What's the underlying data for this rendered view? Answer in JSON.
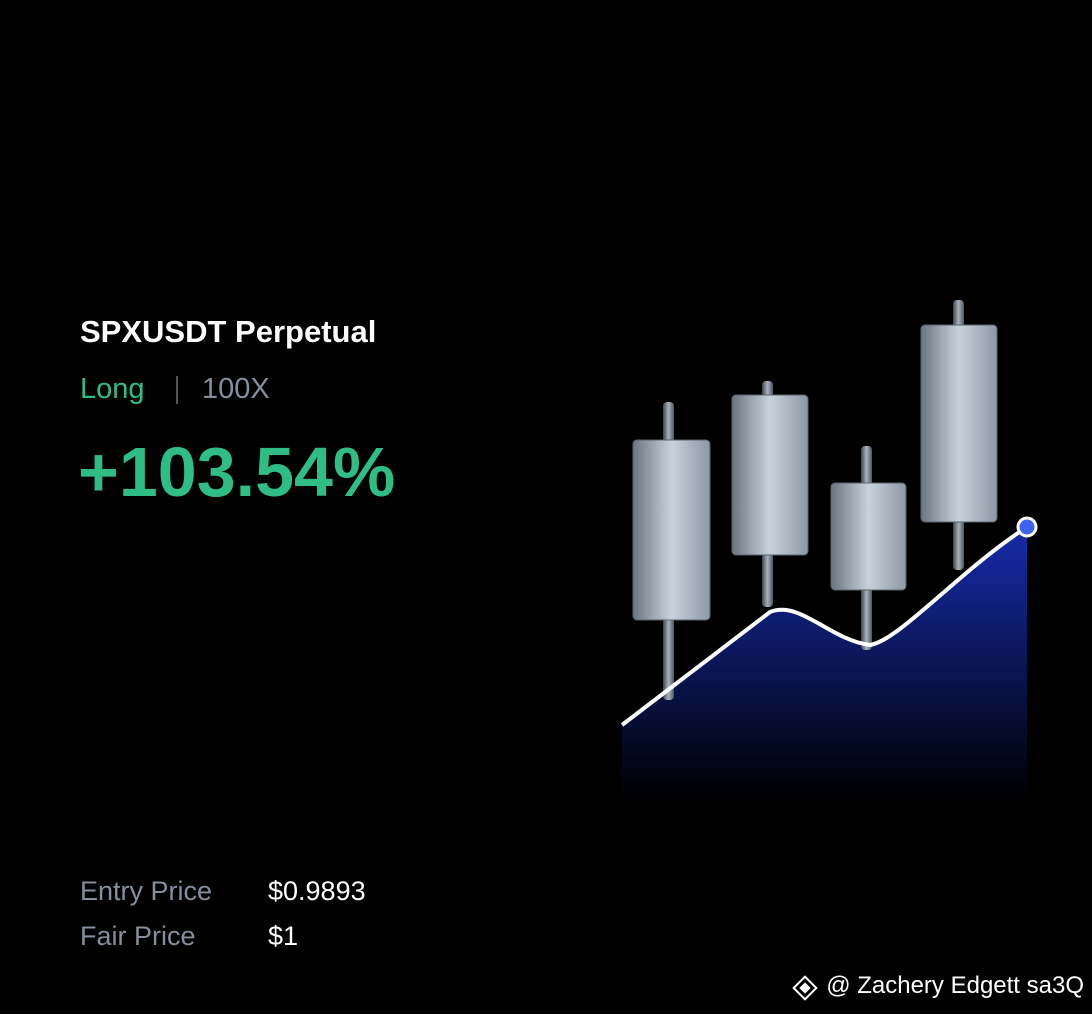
{
  "card": {
    "symbol": "SPXUSDT Perpetual",
    "side": "Long",
    "leverage": "100X",
    "pnl": "+103.54%",
    "details": [
      {
        "label": "Entry Price",
        "value": "$0.9893"
      },
      {
        "label": "Fair Price",
        "value": "$1"
      }
    ],
    "watermark": "@ Zachery Edgett sa3Q"
  }
}
